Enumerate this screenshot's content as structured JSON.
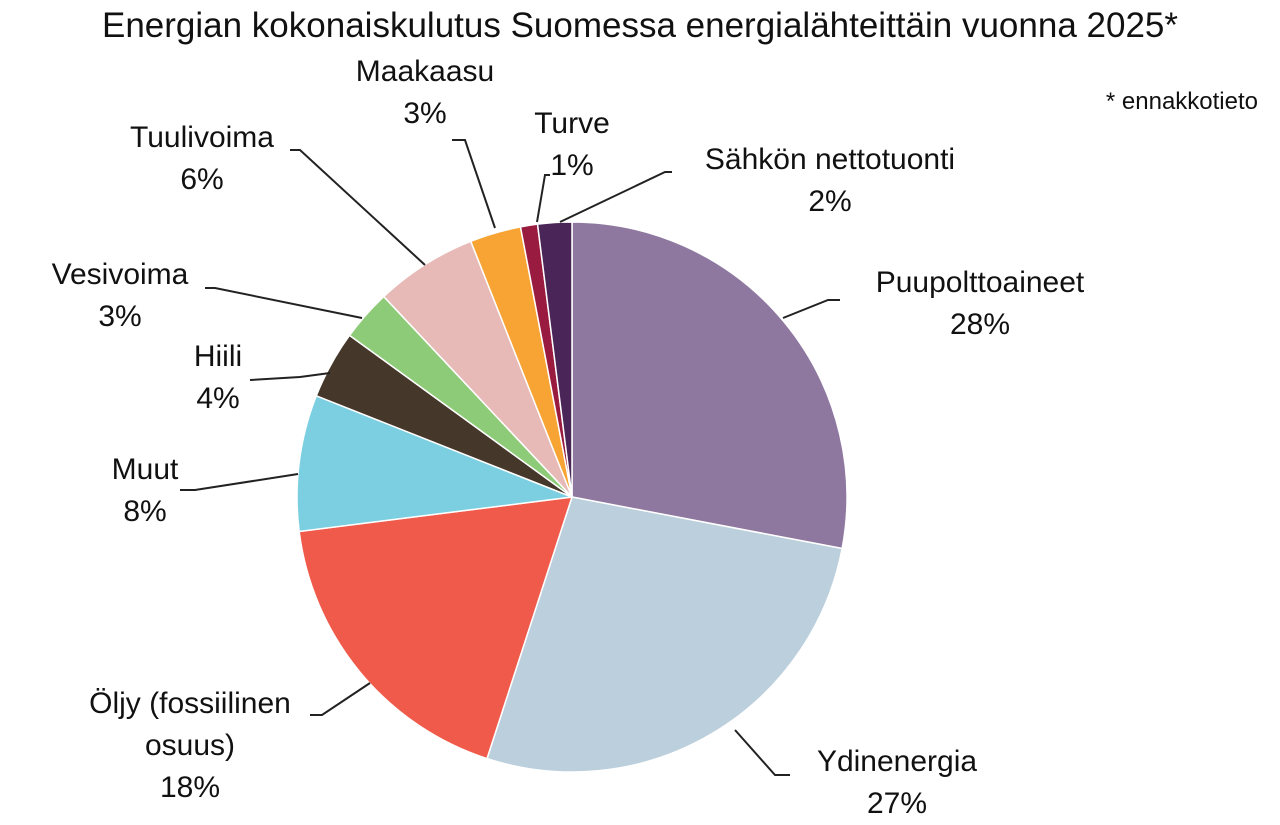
{
  "chart_data": {
    "type": "pie",
    "title": "Energian kokonaiskulutus Suomessa energialähteittäin vuonna 2025*",
    "note": "* ennakkotieto",
    "categories": [
      "Puupolttoaineet",
      "Ydinenergia",
      "Öljy (fossiilinen osuus)",
      "Muut",
      "Hiili",
      "Vesivoima",
      "Tuulivoima",
      "Maakaasu",
      "Turve",
      "Sähkön nettotuonti"
    ],
    "values": [
      28,
      27,
      18,
      8,
      4,
      3,
      6,
      3,
      1,
      2
    ],
    "value_labels": [
      "28%",
      "27%",
      "18%",
      "8%",
      "4%",
      "3%",
      "6%",
      "3%",
      "1%",
      "2%"
    ],
    "colors": [
      "#8e78a0",
      "#bccfdc",
      "#f05a4a",
      "#7ccfe0",
      "#45372a",
      "#8ecb78",
      "#e8bab7",
      "#f7a435",
      "#9a1b40",
      "#4a2558"
    ]
  }
}
